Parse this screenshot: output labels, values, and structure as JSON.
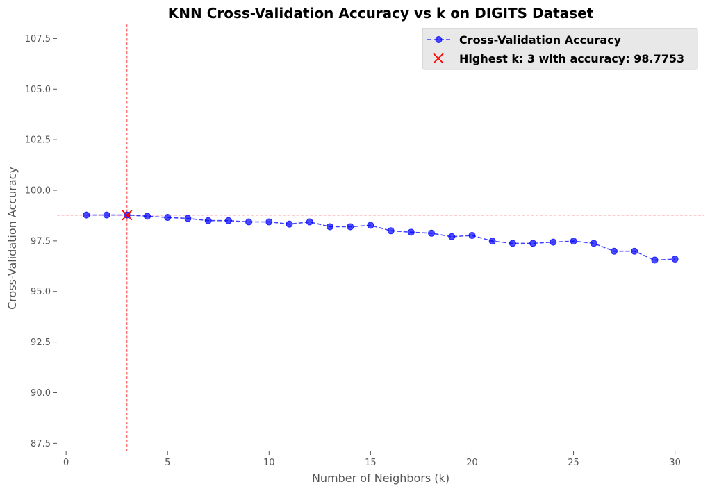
{
  "chart_data": {
    "type": "line",
    "title": "KNN Cross-Validation Accuracy vs k on DIGITS Dataset",
    "xlabel": "Number of Neighbors (k)",
    "ylabel": "Cross-Validation Accuracy",
    "xlim": [
      -0.45,
      31.45
    ],
    "ylim": [
      87.1,
      108.2
    ],
    "xticks": [
      0,
      5,
      10,
      15,
      20,
      25,
      30
    ],
    "xtick_labels": [
      "0",
      "5",
      "10",
      "15",
      "20",
      "25",
      "30"
    ],
    "yticks": [
      87.5,
      90.0,
      92.5,
      95.0,
      97.5,
      100.0,
      102.5,
      105.0,
      107.5
    ],
    "ytick_labels": [
      "87.5",
      "90.0",
      "92.5",
      "95.0",
      "97.5",
      "100.0",
      "102.5",
      "105.0",
      "107.5"
    ],
    "grid": false,
    "legend_position": "top-right",
    "series": [
      {
        "name": "Cross-Validation Accuracy",
        "color": "#0000ff",
        "style": "dashed-line-with-circle-markers",
        "x": [
          1,
          2,
          3,
          4,
          5,
          6,
          7,
          8,
          9,
          10,
          11,
          12,
          13,
          14,
          15,
          16,
          17,
          18,
          19,
          20,
          21,
          22,
          23,
          24,
          25,
          26,
          27,
          28,
          29,
          30
        ],
        "y": [
          98.78,
          98.78,
          98.78,
          98.72,
          98.66,
          98.61,
          98.5,
          98.5,
          98.44,
          98.44,
          98.33,
          98.44,
          98.2,
          98.2,
          98.27,
          98.0,
          97.93,
          97.88,
          97.71,
          97.77,
          97.49,
          97.38,
          97.38,
          97.44,
          97.49,
          97.38,
          96.99,
          96.99,
          96.55,
          96.6
        ]
      }
    ],
    "highlight": {
      "name": "Highest k: 3 with accuracy: 98.7753",
      "marker": "x",
      "color": "#ff0000",
      "x": 3,
      "y": 98.7753
    },
    "reference_lines": {
      "color": "#ff0000",
      "style": "dashed",
      "vertical_x": 3,
      "horizontal_y": 98.7753
    }
  }
}
